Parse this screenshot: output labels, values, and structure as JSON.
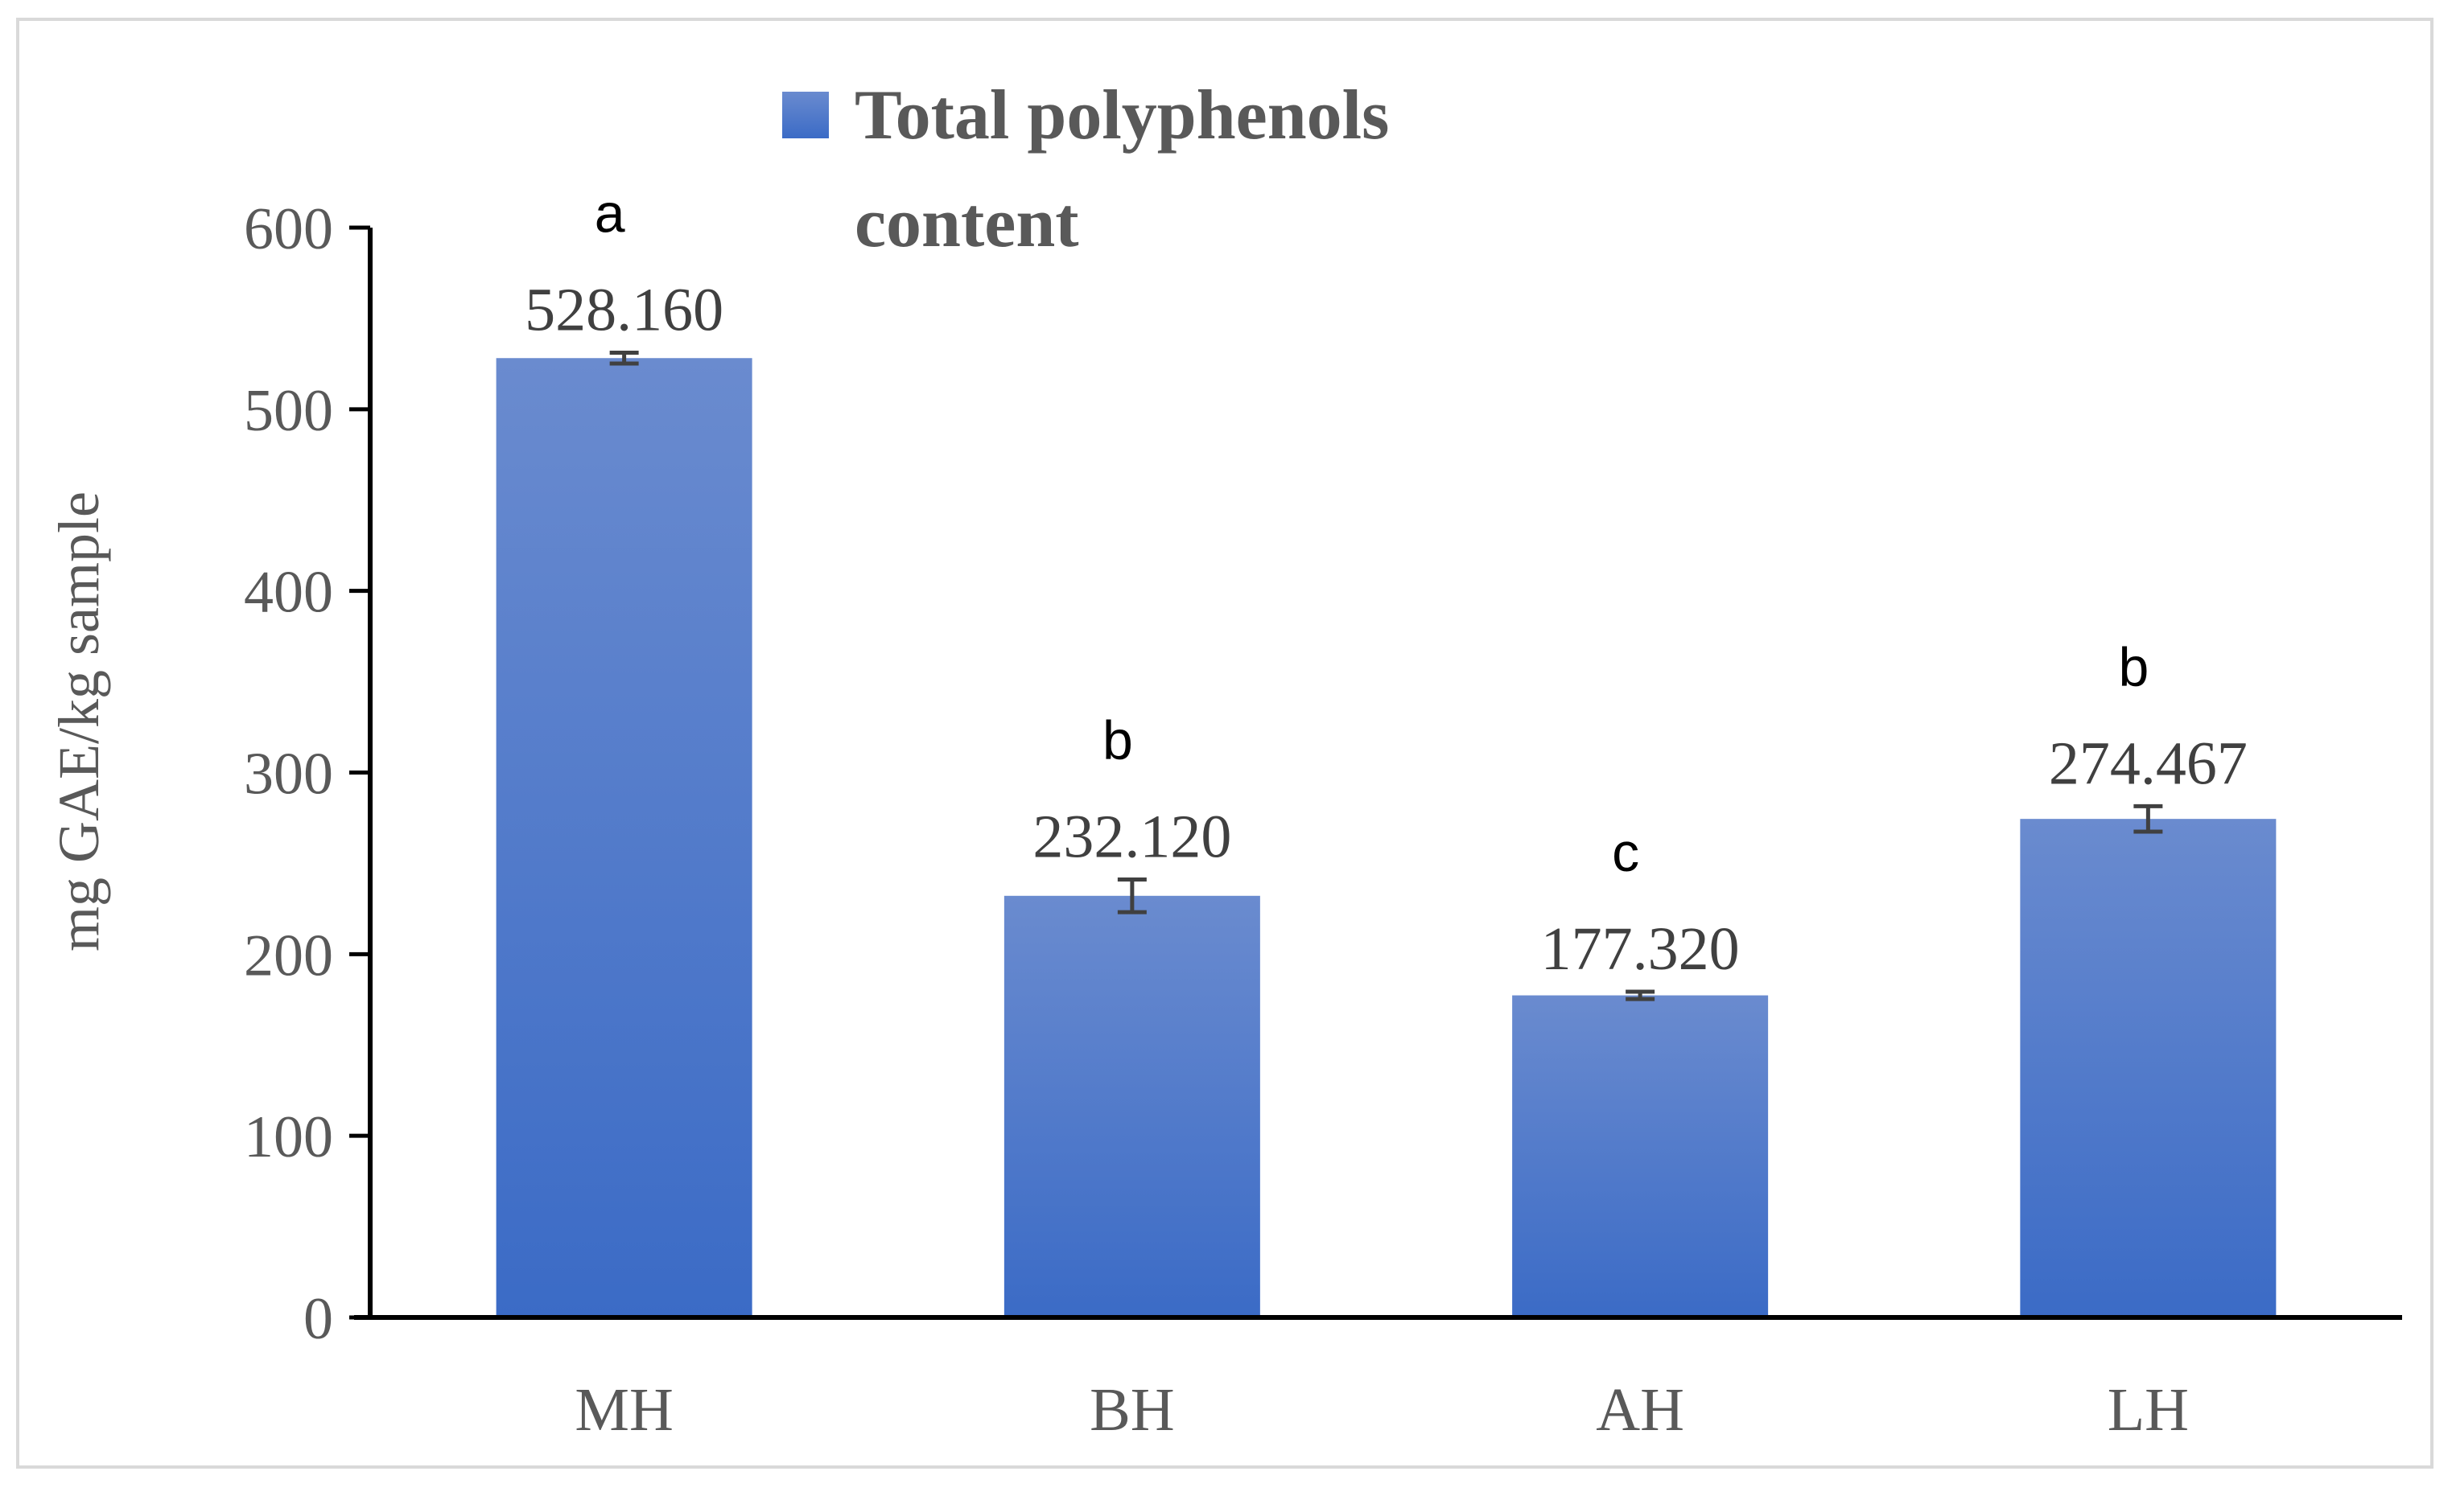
{
  "chart_data": {
    "type": "bar",
    "categories": [
      "MH",
      "BH",
      "AH",
      "LH"
    ],
    "series": [
      {
        "name": "Total polyphenols content",
        "values": [
          528.16,
          232.12,
          177.32,
          274.467
        ],
        "value_labels": [
          "528.160",
          "232.120",
          "177.320",
          "274.467"
        ],
        "errors": [
          3,
          9,
          2,
          7
        ],
        "significance": [
          "a",
          "b",
          "c",
          "b"
        ],
        "color_top": "#6a8bcf",
        "color_bottom": "#3b6bc6"
      }
    ],
    "title": "",
    "xlabel": "",
    "ylabel": "mg GAE/kg sample",
    "ylim": [
      0,
      600
    ],
    "yticks": [
      0,
      100,
      200,
      300,
      400,
      500,
      600
    ],
    "grid": false,
    "legend": {
      "position": "top",
      "lines": [
        "Total polyphenols",
        "content"
      ]
    }
  }
}
